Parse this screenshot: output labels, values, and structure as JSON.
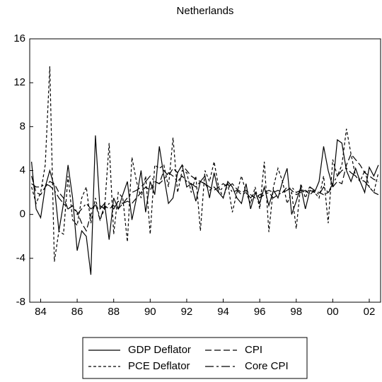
{
  "chart_data": {
    "type": "line",
    "title": "Netherlands",
    "x": [
      1983.5,
      1983.75,
      1984,
      1984.25,
      1984.5,
      1984.75,
      1985,
      1985.25,
      1985.5,
      1985.75,
      1986,
      1986.25,
      1986.5,
      1986.75,
      1987,
      1987.25,
      1987.5,
      1987.75,
      1988,
      1988.25,
      1988.5,
      1988.75,
      1989,
      1989.25,
      1989.5,
      1989.75,
      1990,
      1990.25,
      1990.5,
      1990.75,
      1991,
      1991.25,
      1991.5,
      1991.75,
      1992,
      1992.25,
      1992.5,
      1992.75,
      1993,
      1993.25,
      1993.5,
      1993.75,
      1994,
      1994.25,
      1994.5,
      1994.75,
      1995,
      1995.25,
      1995.5,
      1995.75,
      1996,
      1996.25,
      1996.5,
      1996.75,
      1997,
      1997.25,
      1997.5,
      1997.75,
      1998,
      1998.25,
      1998.5,
      1998.75,
      1999,
      1999.25,
      1999.5,
      1999.75,
      2000,
      2000.25,
      2000.5,
      2000.75,
      2001,
      2001.25,
      2001.5,
      2001.75,
      2002,
      2002.25,
      2002.5
    ],
    "series": [
      {
        "name": "GDP Deflator",
        "color": "#000000",
        "style": "solid",
        "values": [
          4.8,
          0.5,
          -0.3,
          2.5,
          4.0,
          2.5,
          -1.5,
          1.0,
          4.5,
          1.5,
          -3.3,
          -1.5,
          -2.0,
          -5.5,
          7.2,
          0.5,
          1.0,
          -2.3,
          1.5,
          0.5,
          1.8,
          3.0,
          -0.5,
          1.5,
          4.0,
          0.2,
          3.0,
          1.8,
          6.2,
          3.5,
          1.0,
          1.5,
          3.8,
          4.5,
          2.5,
          2.8,
          1.2,
          3.0,
          3.5,
          1.5,
          3.8,
          2.0,
          1.5,
          3.0,
          2.5,
          1.5,
          1.0,
          2.8,
          0.5,
          2.0,
          1.0,
          2.5,
          0.8,
          2.2,
          1.5,
          3.0,
          4.2,
          0.0,
          1.2,
          2.5,
          0.5,
          2.2,
          2.0,
          3.0,
          6.2,
          4.0,
          2.5,
          6.8,
          6.5,
          4.0,
          3.0,
          4.2,
          3.0,
          2.0,
          4.3,
          3.5,
          4.5
        ]
      },
      {
        "name": "CPI",
        "color": "#000000",
        "style": "dashed",
        "values": [
          3.5,
          2.0,
          1.8,
          2.5,
          3.0,
          2.8,
          2.0,
          1.5,
          0.5,
          0.8,
          0.2,
          -0.8,
          -1.5,
          0.0,
          1.0,
          -0.5,
          0.8,
          0.5,
          0.8,
          0.5,
          1.0,
          1.2,
          1.0,
          1.5,
          2.0,
          2.5,
          2.2,
          3.0,
          2.8,
          4.0,
          3.5,
          4.2,
          3.8,
          4.5,
          4.0,
          3.5,
          3.2,
          3.0,
          2.8,
          2.5,
          2.2,
          2.5,
          2.8,
          2.5,
          2.8,
          2.3,
          2.0,
          2.2,
          1.8,
          1.5,
          1.8,
          2.0,
          2.2,
          2.0,
          2.2,
          2.0,
          2.5,
          2.2,
          1.8,
          2.0,
          2.2,
          1.8,
          2.2,
          2.0,
          1.8,
          2.0,
          2.5,
          3.0,
          2.8,
          4.5,
          5.5,
          5.0,
          4.5,
          3.8,
          3.5,
          3.2,
          3.0
        ]
      },
      {
        "name": "PCE Deflator",
        "color": "#000000",
        "style": "dotted",
        "values": [
          2.5,
          1.0,
          2.0,
          4.5,
          13.5,
          -4.3,
          -1.5,
          -1.8,
          3.5,
          -0.5,
          -1.0,
          1.5,
          2.5,
          -0.8,
          1.5,
          -0.5,
          0.5,
          6.5,
          -1.8,
          2.0,
          1.5,
          -2.5,
          5.2,
          3.0,
          1.5,
          3.5,
          -1.8,
          4.5,
          4.2,
          4.5,
          2.5,
          7.0,
          2.0,
          4.0,
          3.8,
          2.0,
          3.5,
          -1.5,
          4.0,
          3.0,
          4.8,
          2.5,
          1.5,
          2.8,
          0.2,
          2.0,
          3.5,
          2.0,
          1.0,
          2.5,
          0.5,
          4.8,
          -1.6,
          2.5,
          4.2,
          3.0,
          1.0,
          2.0,
          -1.3,
          2.8,
          1.5,
          2.5,
          2.0,
          1.5,
          3.5,
          -0.8,
          5.0,
          3.5,
          4.5,
          7.8,
          5.5,
          3.5,
          3.0,
          4.0,
          2.5,
          2.0,
          3.8
        ]
      },
      {
        "name": "Core CPI",
        "color": "#000000",
        "style": "dashdot",
        "values": [
          2.8,
          2.5,
          2.5,
          2.8,
          2.6,
          2.2,
          1.5,
          1.0,
          0.5,
          0.8,
          0.0,
          0.5,
          1.0,
          0.5,
          0.8,
          0.8,
          0.5,
          1.0,
          0.5,
          1.2,
          1.0,
          1.5,
          2.0,
          2.2,
          2.5,
          3.0,
          3.5,
          3.0,
          2.8,
          3.2,
          3.8,
          3.5,
          3.0,
          3.5,
          3.0,
          2.8,
          2.5,
          3.0,
          2.8,
          2.2,
          2.5,
          2.0,
          2.5,
          2.8,
          2.0,
          2.2,
          1.8,
          2.0,
          1.5,
          2.0,
          1.5,
          1.8,
          2.0,
          1.5,
          1.8,
          2.0,
          2.2,
          2.5,
          2.0,
          2.2,
          2.0,
          2.5,
          2.2,
          1.8,
          2.5,
          2.0,
          2.8,
          3.5,
          4.0,
          4.2,
          3.8,
          3.5,
          3.2,
          3.0,
          2.5,
          2.0,
          1.8
        ]
      }
    ],
    "xlim": [
      1983.4,
      2002.62
    ],
    "xticks": [
      {
        "value": 1984,
        "label": "84"
      },
      {
        "value": 1986,
        "label": "86"
      },
      {
        "value": 1988,
        "label": "88"
      },
      {
        "value": 1990,
        "label": "90"
      },
      {
        "value": 1992,
        "label": "92"
      },
      {
        "value": 1994,
        "label": "94"
      },
      {
        "value": 1996,
        "label": "96"
      },
      {
        "value": 1998,
        "label": "98"
      },
      {
        "value": 2000,
        "label": "00"
      },
      {
        "value": 2002,
        "label": "02"
      }
    ],
    "ylim": [
      -8,
      16
    ],
    "yticks": [
      -8,
      -4,
      0,
      4,
      8,
      12,
      16
    ],
    "grid": false
  }
}
